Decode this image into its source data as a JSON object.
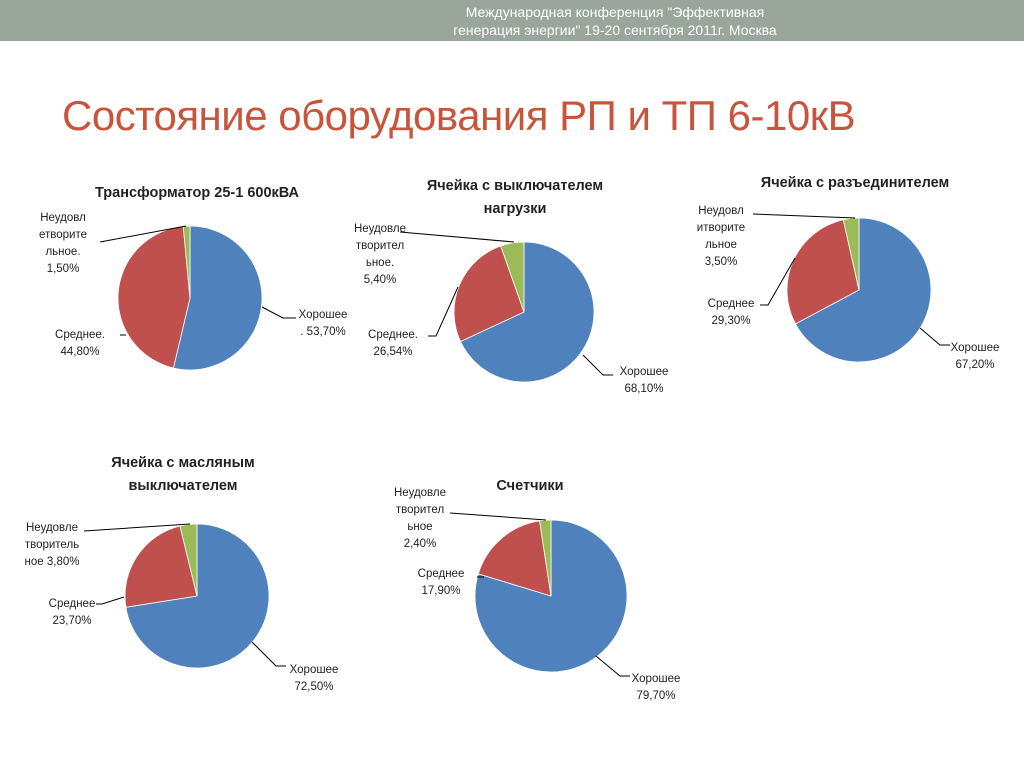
{
  "header": {
    "conference": "Международная конференция \"Эффективная\nгенерация энергии\" 19-20 сентября 2011г. Москва",
    "title": "Состояние оборудования РП и ТП 6-10кВ"
  },
  "colors": {
    "good": "#4f81bd",
    "average": "#c0504d",
    "unsatisfactory": "#9bbb59",
    "title": "#c8543c",
    "banner": "#9aa59c"
  },
  "chart_data": [
    {
      "type": "pie",
      "title": [
        "Трансформатор 25-1 600кВА"
      ],
      "slices": [
        {
          "label": [
            "Хорошее",
            ". 53,70%"
          ],
          "value": 53.7,
          "category": "good"
        },
        {
          "label": [
            "Среднее.",
            "44,80%"
          ],
          "value": 44.8,
          "category": "average"
        },
        {
          "label": [
            "Неудовл",
            "етворите",
            "льное.",
            "1,50%"
          ],
          "value": 1.5,
          "category": "unsatisfactory"
        }
      ]
    },
    {
      "type": "pie",
      "title": [
        "Ячейка с выключателем",
        "нагрузки"
      ],
      "slices": [
        {
          "label": [
            "Хорошее",
            "68,10%"
          ],
          "value": 68.1,
          "category": "good"
        },
        {
          "label": [
            "Среднее.",
            "26,54%"
          ],
          "value": 26.54,
          "category": "average"
        },
        {
          "label": [
            "Неудовле",
            "творител",
            "ьное.",
            "5,40%"
          ],
          "value": 5.4,
          "category": "unsatisfactory"
        }
      ]
    },
    {
      "type": "pie",
      "title": [
        "Ячейка с разъединителем"
      ],
      "slices": [
        {
          "label": [
            "Хорошее",
            "67,20%"
          ],
          "value": 67.2,
          "category": "good"
        },
        {
          "label": [
            "Среднее",
            "29,30%"
          ],
          "value": 29.3,
          "category": "average"
        },
        {
          "label": [
            "Неудовл",
            "итворите",
            "льное",
            "3,50%"
          ],
          "value": 3.5,
          "category": "unsatisfactory"
        }
      ]
    },
    {
      "type": "pie",
      "title": [
        "Ячейка с масляным",
        "выключателем"
      ],
      "slices": [
        {
          "label": [
            "Хорошее",
            "72,50%"
          ],
          "value": 72.5,
          "category": "good"
        },
        {
          "label": [
            "Среднее",
            "23,70%"
          ],
          "value": 23.7,
          "category": "average"
        },
        {
          "label": [
            "Неудовле",
            "творитель",
            "ное 3,80%"
          ],
          "value": 3.8,
          "category": "unsatisfactory"
        }
      ]
    },
    {
      "type": "pie",
      "title": [
        "Счетчики"
      ],
      "slices": [
        {
          "label": [
            "Хорошее",
            "79,70%"
          ],
          "value": 79.7,
          "category": "good"
        },
        {
          "label": [
            "Среднее",
            "17,90%"
          ],
          "value": 17.9,
          "category": "average"
        },
        {
          "label": [
            "Неудовле",
            "творител",
            "ьное",
            "2,40%"
          ],
          "value": 2.4,
          "category": "unsatisfactory"
        }
      ]
    }
  ]
}
